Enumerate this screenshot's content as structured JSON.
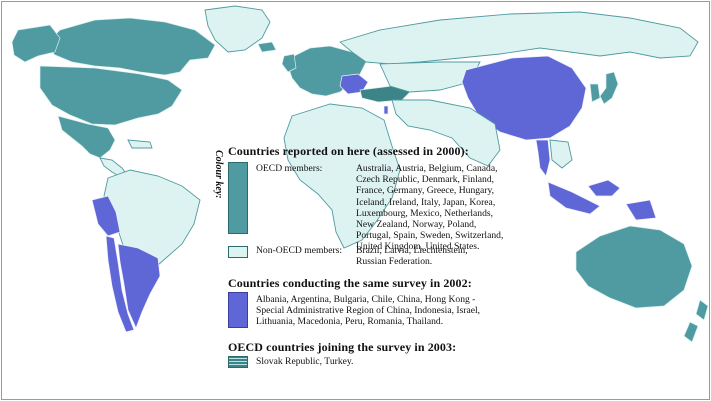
{
  "map_title": "",
  "colours": {
    "oecd": "#4f9ba1",
    "non_oecd": "#ddf3f1",
    "survey_2002": "#5f67d6",
    "joining_2003": "#3d8489"
  },
  "legend": {
    "colour_key_label": "Colour key:",
    "section_2000": {
      "title": "Countries reported on here (assessed in 2000):",
      "oecd_label": "OECD members:",
      "oecd_lines": [
        "Australia, Austria, Belgium, Canada,",
        "Czech Republic, Denmark, Finland,",
        "France, Germany, Greece, Hungary,",
        "Iceland, Ireland, Italy, Japan, Korea,",
        "Luxembourg, Mexico, Netherlands,",
        "New Zealand, Norway, Poland,",
        "Portugal, Spain, Sweden, Switzerland,",
        "United Kingdom, United States."
      ],
      "non_oecd_label": "Non-OECD members:",
      "non_oecd_lines": [
        "Brazil, Latvia, Liechtenstein,",
        "Russian Federation."
      ]
    },
    "section_2002": {
      "title": "Countries conducting the same survey in 2002:",
      "lines": [
        "Albania, Argentina, Bulgaria, Chile, China, Hong Kong -",
        "Special Administrative Region of China, Indonesia, Israel,",
        "Lithuania, Macedonia, Peru, Romania, Thailand."
      ]
    },
    "section_2003": {
      "title": "OECD countries joining the survey in 2003:",
      "lines": [
        "Slovak Republic, Turkey."
      ]
    }
  }
}
